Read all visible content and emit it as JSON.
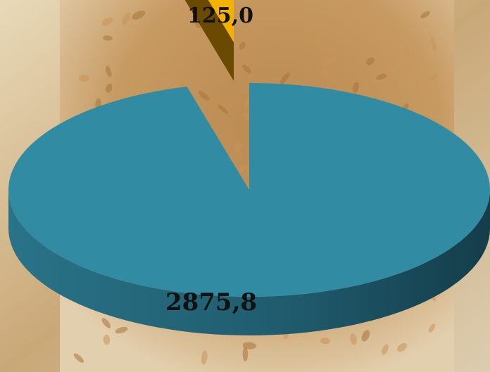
{
  "chart_data": {
    "type": "pie",
    "slices": [
      {
        "label": "2875,8",
        "value": 2875.8,
        "color": "#318ba2",
        "sideColor": "#1f5a6c"
      },
      {
        "label": "125,0",
        "value": 125.0,
        "color": "#f5b100",
        "sideColor": "#6a4a00",
        "exploded": true
      }
    ],
    "background": "grain-in-hands-photo"
  }
}
